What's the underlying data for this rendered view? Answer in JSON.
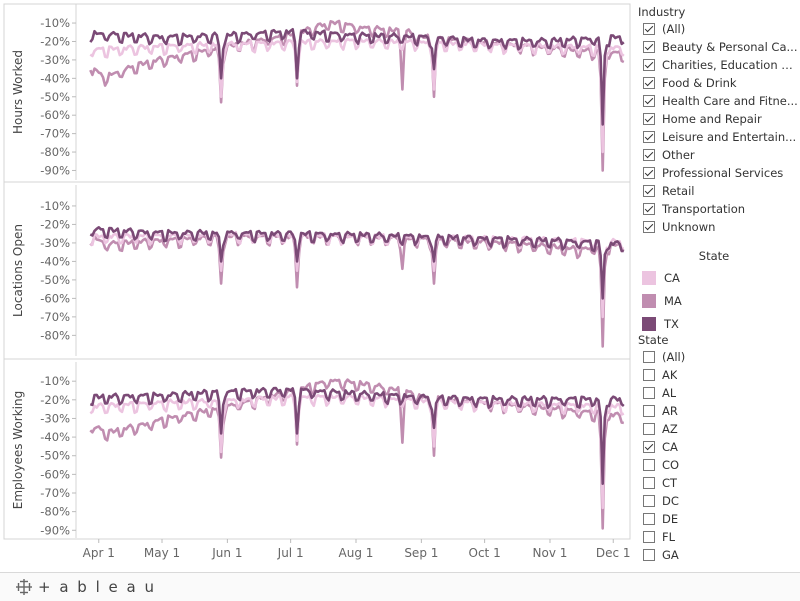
{
  "chart_data": {
    "type": "line",
    "x_tick_labels": [
      "Apr 1",
      "May 1",
      "Jun 1",
      "Jul 1",
      "Aug 1",
      "Sep 1",
      "Oct 1",
      "Nov 1",
      "Dec 1"
    ],
    "x_range": [
      "2020-03-25",
      "2020-12-08"
    ],
    "colors": {
      "CA": "#ecc4e0",
      "MA": "#c08db0",
      "TX": "#7b4a76"
    },
    "series_order": [
      "MA",
      "CA",
      "TX"
    ],
    "panels": [
      {
        "ylabel": "Hours Worked",
        "yticks": [
          -10,
          -20,
          -30,
          -40,
          -50,
          -60,
          -70,
          -80,
          -90
        ],
        "ytick_labels": [
          "-10%",
          "-20%",
          "-30%",
          "-40%",
          "-50%",
          "-60%",
          "-70%",
          "-80%",
          "-90%"
        ],
        "ylim": [
          -93,
          -4
        ],
        "series": [
          {
            "name": "CA",
            "knots": [
              [
                "2020-03-28",
                -25
              ],
              [
                "2020-05-01",
                -23
              ],
              [
                "2020-06-01",
                -22
              ],
              [
                "2020-07-01",
                -21
              ],
              [
                "2020-08-01",
                -20
              ],
              [
                "2020-09-01",
                -21
              ],
              [
                "2020-10-01",
                -22
              ],
              [
                "2020-11-01",
                -23
              ],
              [
                "2020-12-06",
                -24
              ]
            ],
            "dips": [
              [
                "2020-05-29",
                -50
              ],
              [
                "2020-07-04",
                -42
              ],
              [
                "2020-09-07",
                -46
              ],
              [
                "2020-11-26",
                -80
              ]
            ]
          },
          {
            "name": "MA",
            "knots": [
              [
                "2020-03-28",
                -33
              ],
              [
                "2020-04-03",
                -40
              ],
              [
                "2020-04-20",
                -33
              ],
              [
                "2020-05-01",
                -30
              ],
              [
                "2020-06-01",
                -23
              ],
              [
                "2020-07-01",
                -17
              ],
              [
                "2020-07-20",
                -10
              ],
              [
                "2020-08-05",
                -13
              ],
              [
                "2020-08-25",
                -15
              ],
              [
                "2020-09-01",
                -18
              ],
              [
                "2020-10-01",
                -21
              ],
              [
                "2020-11-01",
                -24
              ],
              [
                "2020-12-06",
                -27
              ]
            ],
            "dips": [
              [
                "2020-05-29",
                -53
              ],
              [
                "2020-07-04",
                -44
              ],
              [
                "2020-08-23",
                -46
              ],
              [
                "2020-09-07",
                -50
              ],
              [
                "2020-11-26",
                -90
              ]
            ]
          },
          {
            "name": "TX",
            "knots": [
              [
                "2020-03-28",
                -16
              ],
              [
                "2020-05-01",
                -18
              ],
              [
                "2020-06-01",
                -17
              ],
              [
                "2020-07-01",
                -15
              ],
              [
                "2020-08-01",
                -17
              ],
              [
                "2020-09-01",
                -18
              ],
              [
                "2020-10-01",
                -20
              ],
              [
                "2020-11-01",
                -20
              ],
              [
                "2020-12-06",
                -18
              ]
            ],
            "dips": [
              [
                "2020-05-29",
                -40
              ],
              [
                "2020-07-04",
                -40
              ],
              [
                "2020-09-07",
                -35
              ],
              [
                "2020-11-26",
                -65
              ]
            ]
          }
        ]
      },
      {
        "ylabel": "Locations Open",
        "yticks": [
          -10,
          -20,
          -30,
          -40,
          -50,
          -60,
          -70,
          -80
        ],
        "ytick_labels": [
          "-10%",
          "-20%",
          "-30%",
          "-40%",
          "-50%",
          "-60%",
          "-70%",
          "-80%"
        ],
        "ylim": [
          -89,
          -3
        ],
        "series": [
          {
            "name": "CA",
            "knots": [
              [
                "2020-03-28",
                -27
              ],
              [
                "2020-06-01",
                -26
              ],
              [
                "2020-08-01",
                -27
              ],
              [
                "2020-10-01",
                -28
              ],
              [
                "2020-12-06",
                -30
              ]
            ],
            "dips": [
              [
                "2020-05-29",
                -45
              ],
              [
                "2020-07-04",
                -45
              ],
              [
                "2020-09-07",
                -45
              ],
              [
                "2020-11-26",
                -70
              ]
            ]
          },
          {
            "name": "MA",
            "knots": [
              [
                "2020-03-28",
                -27
              ],
              [
                "2020-04-05",
                -31
              ],
              [
                "2020-05-01",
                -29
              ],
              [
                "2020-06-01",
                -27
              ],
              [
                "2020-08-01",
                -27
              ],
              [
                "2020-09-15",
                -29
              ],
              [
                "2020-10-20",
                -31
              ],
              [
                "2020-11-15",
                -34
              ],
              [
                "2020-12-06",
                -31
              ]
            ],
            "dips": [
              [
                "2020-05-29",
                -52
              ],
              [
                "2020-07-04",
                -54
              ],
              [
                "2020-08-23",
                -44
              ],
              [
                "2020-09-07",
                -52
              ],
              [
                "2020-11-26",
                -86
              ]
            ]
          },
          {
            "name": "TX",
            "knots": [
              [
                "2020-03-28",
                -23
              ],
              [
                "2020-05-01",
                -25
              ],
              [
                "2020-06-01",
                -25
              ],
              [
                "2020-08-01",
                -26
              ],
              [
                "2020-10-01",
                -28
              ],
              [
                "2020-11-01",
                -29
              ],
              [
                "2020-12-06",
                -31
              ]
            ],
            "dips": [
              [
                "2020-05-29",
                -40
              ],
              [
                "2020-07-04",
                -40
              ],
              [
                "2020-09-07",
                -40
              ],
              [
                "2020-11-26",
                -60
              ]
            ]
          }
        ]
      },
      {
        "ylabel": "Employees Working",
        "yticks": [
          -10,
          -20,
          -30,
          -40,
          -50,
          -60,
          -70,
          -80,
          -90
        ],
        "ytick_labels": [
          "-10%",
          "-20%",
          "-30%",
          "-40%",
          "-50%",
          "-60%",
          "-70%",
          "-80%",
          "-90%"
        ],
        "ylim": [
          -92,
          -4
        ],
        "series": [
          {
            "name": "CA",
            "knots": [
              [
                "2020-03-28",
                -24
              ],
              [
                "2020-05-01",
                -22
              ],
              [
                "2020-06-01",
                -21
              ],
              [
                "2020-07-01",
                -19
              ],
              [
                "2020-08-01",
                -19
              ],
              [
                "2020-09-01",
                -21
              ],
              [
                "2020-10-01",
                -22
              ],
              [
                "2020-11-01",
                -23
              ],
              [
                "2020-12-06",
                -24
              ]
            ],
            "dips": [
              [
                "2020-05-29",
                -48
              ],
              [
                "2020-07-04",
                -42
              ],
              [
                "2020-09-07",
                -45
              ],
              [
                "2020-11-26",
                -78
              ]
            ]
          },
          {
            "name": "MA",
            "knots": [
              [
                "2020-03-28",
                -34
              ],
              [
                "2020-04-05",
                -38
              ],
              [
                "2020-04-25",
                -33
              ],
              [
                "2020-05-01",
                -31
              ],
              [
                "2020-06-01",
                -24
              ],
              [
                "2020-07-01",
                -16
              ],
              [
                "2020-07-20",
                -10
              ],
              [
                "2020-08-05",
                -12
              ],
              [
                "2020-08-25",
                -16
              ],
              [
                "2020-09-01",
                -19
              ],
              [
                "2020-10-01",
                -22
              ],
              [
                "2020-11-01",
                -25
              ],
              [
                "2020-12-06",
                -29
              ]
            ],
            "dips": [
              [
                "2020-05-29",
                -51
              ],
              [
                "2020-07-04",
                -44
              ],
              [
                "2020-08-23",
                -43
              ],
              [
                "2020-09-07",
                -50
              ],
              [
                "2020-11-26",
                -89
              ]
            ]
          },
          {
            "name": "TX",
            "knots": [
              [
                "2020-03-28",
                -19
              ],
              [
                "2020-05-01",
                -18
              ],
              [
                "2020-06-01",
                -16
              ],
              [
                "2020-07-01",
                -15
              ],
              [
                "2020-08-01",
                -17
              ],
              [
                "2020-09-01",
                -19
              ],
              [
                "2020-10-01",
                -20
              ],
              [
                "2020-11-01",
                -20
              ],
              [
                "2020-12-06",
                -20
              ]
            ],
            "dips": [
              [
                "2020-05-29",
                -38
              ],
              [
                "2020-07-04",
                -38
              ],
              [
                "2020-09-07",
                -35
              ],
              [
                "2020-11-26",
                -65
              ]
            ]
          }
        ]
      }
    ]
  },
  "industry_filter": {
    "title": "Industry",
    "items": [
      {
        "label": "(All)",
        "checked": true
      },
      {
        "label": "Beauty & Personal Ca...",
        "checked": true
      },
      {
        "label": "Charities, Education &...",
        "checked": true
      },
      {
        "label": "Food & Drink",
        "checked": true
      },
      {
        "label": "Health Care and Fitne...",
        "checked": true
      },
      {
        "label": "Home and Repair",
        "checked": true
      },
      {
        "label": "Leisure and Entertain...",
        "checked": true
      },
      {
        "label": "Other",
        "checked": true
      },
      {
        "label": "Professional Services",
        "checked": true
      },
      {
        "label": "Retail",
        "checked": true
      },
      {
        "label": "Transportation",
        "checked": true
      },
      {
        "label": "Unknown",
        "checked": true
      }
    ]
  },
  "color_legend": {
    "title": "State",
    "items": [
      {
        "label": "CA",
        "color": "#ecc4e0"
      },
      {
        "label": "MA",
        "color": "#c08db0"
      },
      {
        "label": "TX",
        "color": "#7b4a76"
      }
    ]
  },
  "state_filter": {
    "title": "State",
    "items": [
      {
        "label": "(All)",
        "checked": false
      },
      {
        "label": "AK",
        "checked": false
      },
      {
        "label": "AL",
        "checked": false
      },
      {
        "label": "AR",
        "checked": false
      },
      {
        "label": "AZ",
        "checked": false
      },
      {
        "label": "CA",
        "checked": true
      },
      {
        "label": "CO",
        "checked": false
      },
      {
        "label": "CT",
        "checked": false
      },
      {
        "label": "DC",
        "checked": false
      },
      {
        "label": "DE",
        "checked": false
      },
      {
        "label": "FL",
        "checked": false
      },
      {
        "label": "GA",
        "checked": false
      }
    ]
  },
  "footer": {
    "logo_text": "+ a b l e a u"
  }
}
